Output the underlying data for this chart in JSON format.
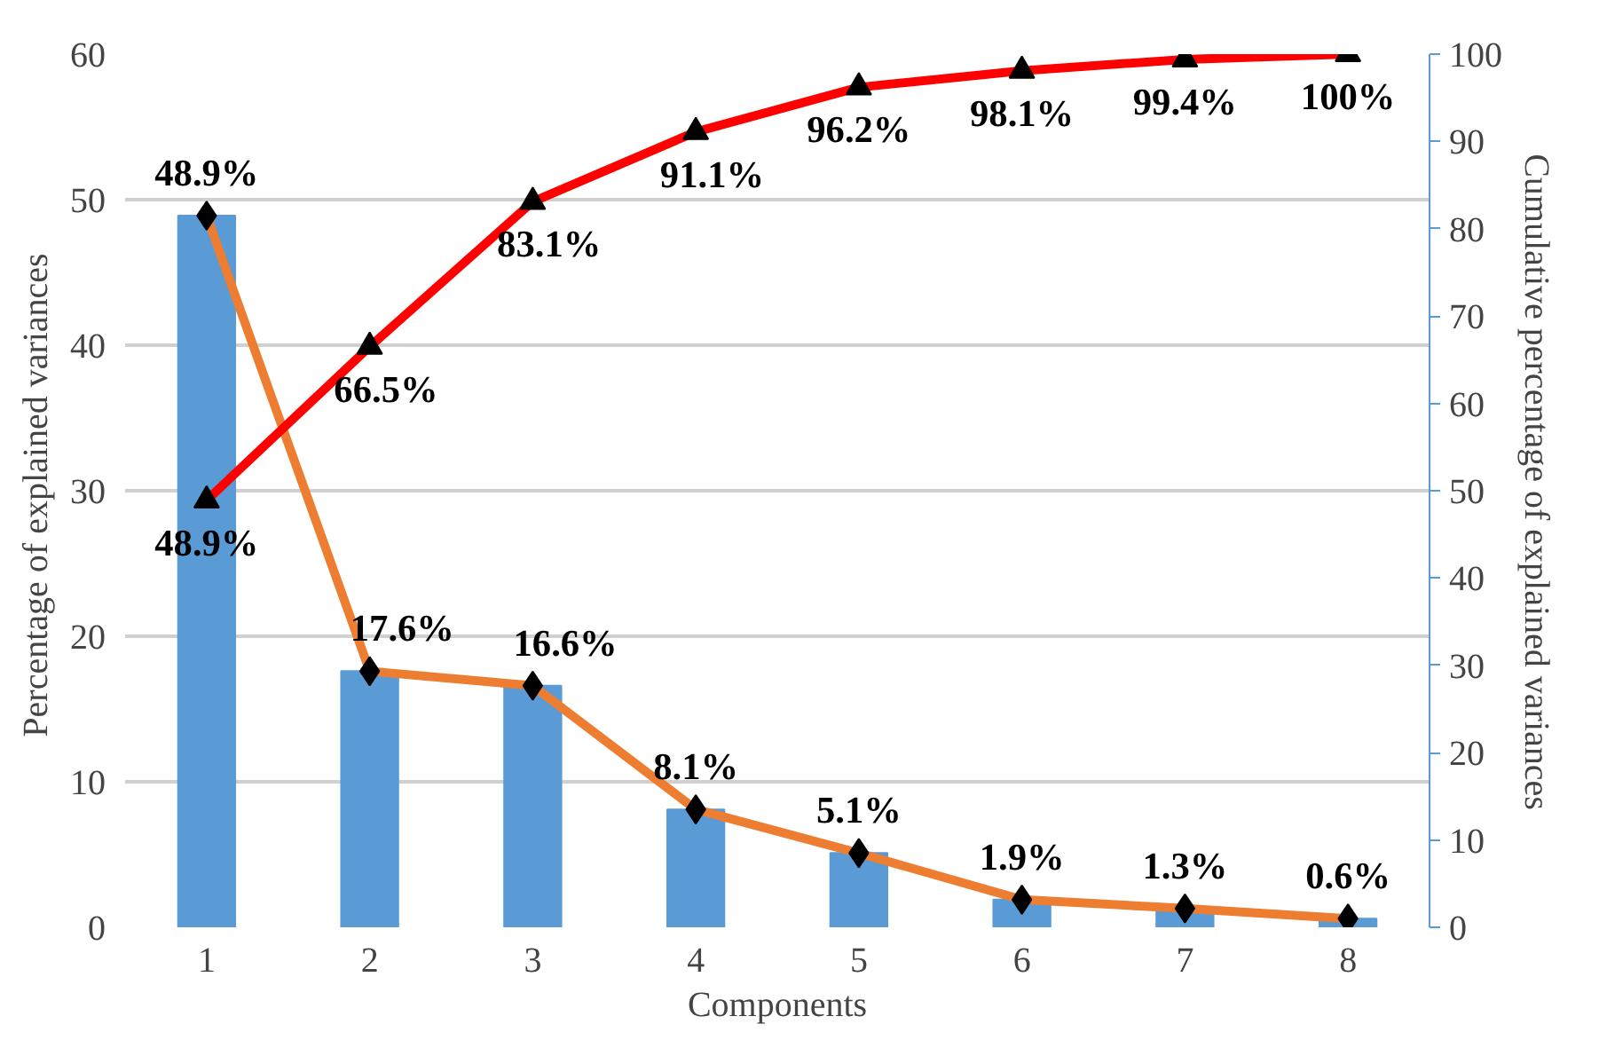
{
  "chart_data": {
    "type": "bar",
    "xlabel": "Components",
    "ylabel": "Percentage of explained  variances",
    "y2label": "Cumulative  percentage of explained  variances",
    "categories": [
      "1",
      "2",
      "3",
      "4",
      "5",
      "6",
      "7",
      "8"
    ],
    "ylim": [
      0,
      60
    ],
    "yticks": [
      0,
      10,
      20,
      30,
      40,
      50,
      60
    ],
    "y2lim": [
      0,
      100
    ],
    "y2ticks": [
      0,
      10,
      20,
      30,
      40,
      50,
      60,
      70,
      80,
      90,
      100
    ],
    "grid": "y",
    "series": [
      {
        "color": "#5b9bd5",
        "values": [
          48.9,
          17.6,
          16.6,
          8.1,
          5.1,
          1.9,
          1.3,
          0.6
        ]
      },
      {
        "type": "line",
        "color": "#ed7d31",
        "marker": "diamond",
        "values": [
          48.9,
          17.6,
          16.6,
          8.1,
          5.1,
          1.9,
          1.3,
          0.6
        ],
        "value_labels": [
          "48.9%",
          "17.6%",
          "16.6%",
          "8.1%",
          "5.1%",
          "1.9%",
          "1.3%",
          "0.6%"
        ]
      },
      {
        "type": "line",
        "color": "#ff0000",
        "marker": "triangle",
        "axis": "y2",
        "values": [
          48.9,
          66.5,
          83.1,
          91.1,
          96.2,
          98.1,
          99.4,
          100
        ],
        "value_labels": [
          "48.9%",
          "66.5%",
          "83.1%",
          "91.1%",
          "96.2%",
          "98.1%",
          "99.4%",
          "100%"
        ]
      }
    ]
  }
}
